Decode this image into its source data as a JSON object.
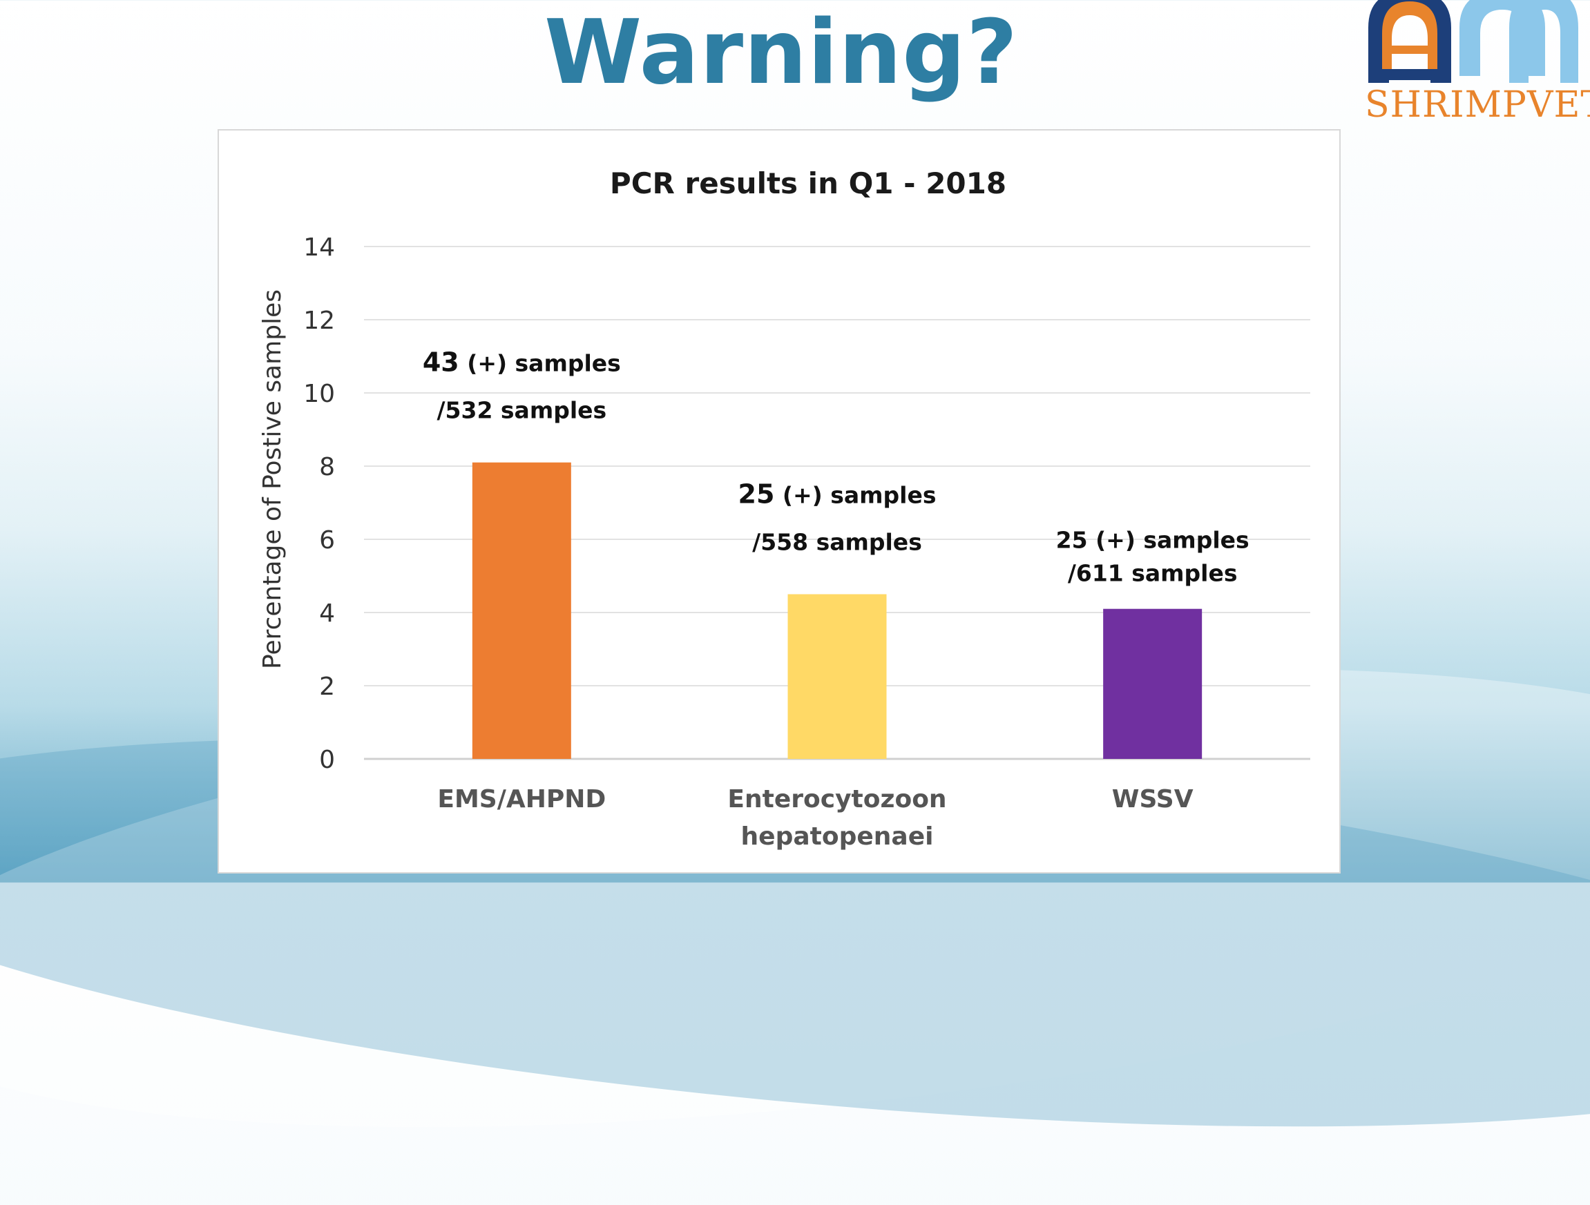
{
  "slide": {
    "title": "Warning?",
    "logo_text": "SHRIMPVET"
  },
  "colors": {
    "title": "#2e7ea3",
    "logo_orange": "#e8842c",
    "logo_navy": "#1d3f7a",
    "logo_light_blue": "#8cc7ea"
  },
  "chart_data": {
    "type": "bar",
    "title": "PCR results in Q1 - 2018",
    "ylabel": "Percentage of Postive samples",
    "xlabel": "",
    "ylim": [
      0,
      14
    ],
    "yticks": [
      "0",
      "2",
      "4",
      "6",
      "8",
      "10",
      "12",
      "14"
    ],
    "grid": true,
    "categories": [
      [
        "EMS/AHPND"
      ],
      [
        "Enterocytozoon",
        "hepatopenaei"
      ],
      [
        "WSSV"
      ]
    ],
    "values": [
      8.1,
      4.5,
      4.1
    ],
    "colors": [
      "#ed7d31",
      "#ffd966",
      "#7030a0"
    ],
    "data_labels": [
      {
        "line1_count": "43",
        "line1_rest": "(+) samples",
        "line2": "/532 samples"
      },
      {
        "line1_count": "25",
        "line1_rest": "(+) samples",
        "line2": "/558 samples"
      },
      {
        "line1_count": "25",
        "line1_rest": "(+) samples",
        "line2": "/611 samples"
      }
    ]
  }
}
